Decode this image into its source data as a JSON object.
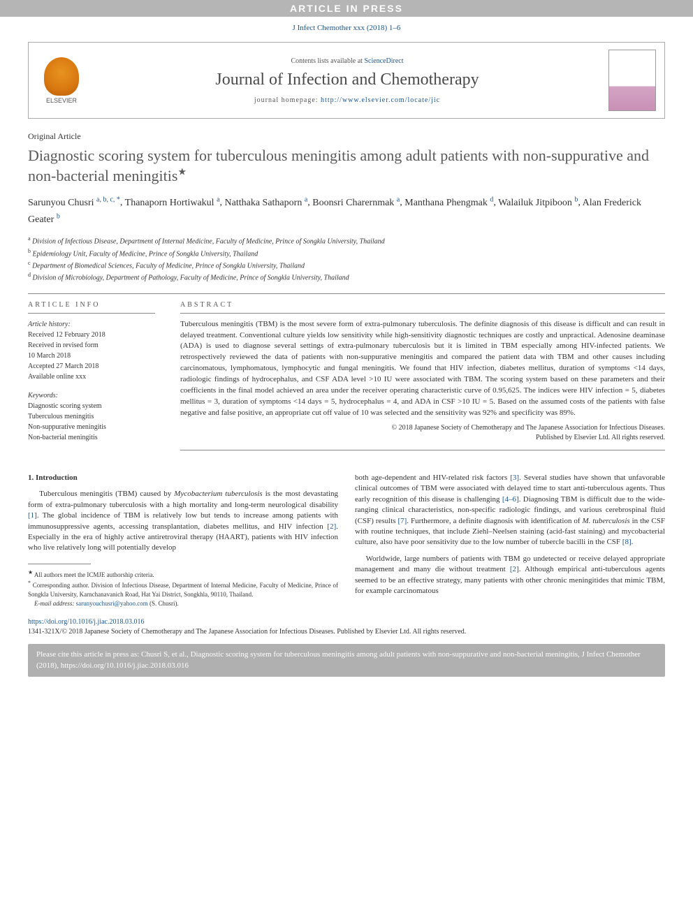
{
  "banner": "ARTICLE IN PRESS",
  "journal_ref": "J Infect Chemother xxx (2018) 1–6",
  "header": {
    "contents_prefix": "Contents lists available at ",
    "contents_link": "ScienceDirect",
    "journal_name": "Journal of Infection and Chemotherapy",
    "homepage_prefix": "journal homepage: ",
    "homepage_url": "http://www.elsevier.com/locate/jic",
    "publisher": "ELSEVIER"
  },
  "article": {
    "type": "Original Article",
    "title": "Diagnostic scoring system for tuberculous meningitis among adult patients with non-suppurative and non-bacterial meningitis",
    "title_star": "★"
  },
  "authors": [
    {
      "name": "Sarunyou Chusri",
      "aff": "a, b, c, *"
    },
    {
      "name": "Thanaporn Hortiwakul",
      "aff": "a"
    },
    {
      "name": "Natthaka Sathaporn",
      "aff": "a"
    },
    {
      "name": "Boonsri Charernmak",
      "aff": "a"
    },
    {
      "name": "Manthana Phengmak",
      "aff": "d"
    },
    {
      "name": "Walailuk Jitpiboon",
      "aff": "b"
    },
    {
      "name": "Alan Frederick Geater",
      "aff": "b"
    }
  ],
  "affiliations": [
    {
      "lab": "a",
      "text": "Division of Infectious Disease, Department of Internal Medicine, Faculty of Medicine, Prince of Songkla University, Thailand"
    },
    {
      "lab": "b",
      "text": "Epidemiology Unit, Faculty of Medicine, Prince of Songkla University, Thailand"
    },
    {
      "lab": "c",
      "text": "Department of Biomedical Sciences, Faculty of Medicine, Prince of Songkla University, Thailand"
    },
    {
      "lab": "d",
      "text": "Division of Microbiology, Department of Pathology, Faculty of Medicine, Prince of Songkla University, Thailand"
    }
  ],
  "info": {
    "head": "ARTICLE INFO",
    "history_label": "Article history:",
    "history": [
      "Received 12 February 2018",
      "Received in revised form",
      "10 March 2018",
      "Accepted 27 March 2018",
      "Available online xxx"
    ],
    "keywords_label": "Keywords:",
    "keywords": [
      "Diagnostic scoring system",
      "Tuberculous meningitis",
      "Non-suppurative meningitis",
      "Non-bacterial meningitis"
    ]
  },
  "abstract": {
    "head": "ABSTRACT",
    "text": "Tuberculous meningitis (TBM) is the most severe form of extra-pulmonary tuberculosis. The definite diagnosis of this disease is difficult and can result in delayed treatment. Conventional culture yields low sensitivity while high-sensitivity diagnostic techniques are costly and unpractical. Adenosine deaminase (ADA) is used to diagnose several settings of extra-pulmonary tuberculosis but it is limited in TBM especially among HIV-infected patients. We retrospectively reviewed the data of patients with non-suppurative meningitis and compared the patient data with TBM and other causes including carcinomatous, lymphomatous, lymphocytic and fungal meningitis. We found that HIV infection, diabetes mellitus, duration of symptoms <14 days, radiologic findings of hydrocephalus, and CSF ADA level >10 IU were associated with TBM. The scoring system based on these parameters and their coefficients in the final model achieved an area under the receiver operating characteristic curve of 0.95,625. The indices were HIV infection = 5, diabetes mellitus = 3, duration of symptoms <14 days = 5, hydrocephalus = 4, and ADA in CSF >10 IU = 5. Based on the assumed costs of the patients with false negative and false positive, an appropriate cut off value of 10 was selected and the sensitivity was 92% and specificity was 89%.",
    "copyright1": "© 2018 Japanese Society of Chemotherapy and The Japanese Association for Infectious Diseases.",
    "copyright2": "Published by Elsevier Ltd. All rights reserved."
  },
  "body": {
    "section_num": "1.",
    "section_title": "Introduction",
    "left_p1a": "Tuberculous meningitis (TBM) caused by ",
    "left_p1_ital": "Mycobacterium tuberculosis",
    "left_p1b": " is the most devastating form of extra-pulmonary tuberculosis with a high mortality and long-term neurological disability ",
    "left_ref1": "[1]",
    "left_p1c": ". The global incidence of TBM is relatively low but tends to increase among patients with immunosuppressive agents, accessing transplantation, diabetes mellitus, and HIV infection ",
    "left_ref2": "[2]",
    "left_p1d": ". Especially in the era of highly active antiretroviral therapy (HAART), patients with HIV infection who live relatively long will potentially develop",
    "right_p1a": "both age-dependent and HIV-related risk factors ",
    "right_ref3": "[3]",
    "right_p1b": ". Several studies have shown that unfavorable clinical outcomes of TBM were associated with delayed time to start anti-tuberculous agents. Thus early recognition of this disease is challenging ",
    "right_ref46": "[4–6]",
    "right_p1c": ". Diagnosing TBM is difficult due to the wide-ranging clinical characteristics, non-specific radiologic findings, and various cerebrospinal fluid (CSF) results ",
    "right_ref7": "[7]",
    "right_p1d": ". Furthermore, a definite diagnosis with identification of ",
    "right_ital": "M. tuberculosis",
    "right_p1e": " in the CSF with routine techniques, that include Ziehl–Neelsen staining (acid-fast staining) and mycobacterial culture, also have poor sensitivity due to the low number of tubercle bacilli in the CSF ",
    "right_ref8": "[8]",
    "right_p1f": ".",
    "right_p2a": "Worldwide, large numbers of patients with TBM go undetected or receive delayed appropriate management and many die without treatment ",
    "right_ref2b": "[2]",
    "right_p2b": ". Although empirical anti-tuberculous agents seemed to be an effective strategy, many patients with other chronic meningitides that mimic TBM, for example carcinomatous"
  },
  "footnotes": {
    "star": "★",
    "star_text": " All authors meet the ICMJE authorship criteria.",
    "corr": "*",
    "corr_text": " Corresponding author. Division of Infectious Disease, Department of Internal Medicine, Faculty of Medicine, Prince of Songkla University, Karnchanavanich Road, Hat Yai District, Songkhla, 90110, Thailand.",
    "email_label": "E-mail address: ",
    "email": "sarunyouchusri@yahoo.com",
    "email_suffix": " (S. Chusri)."
  },
  "doi": {
    "url": "https://doi.org/10.1016/j.jiac.2018.03.016",
    "copyright": "1341-321X/© 2018 Japanese Society of Chemotherapy and The Japanese Association for Infectious Diseases. Published by Elsevier Ltd. All rights reserved."
  },
  "citebox": "Please cite this article in press as: Chusri S, et al., Diagnostic scoring system for tuberculous meningitis among adult patients with non-suppurative and non-bacterial meningitis, J Infect Chemother (2018), https://doi.org/10.1016/j.jiac.2018.03.016"
}
